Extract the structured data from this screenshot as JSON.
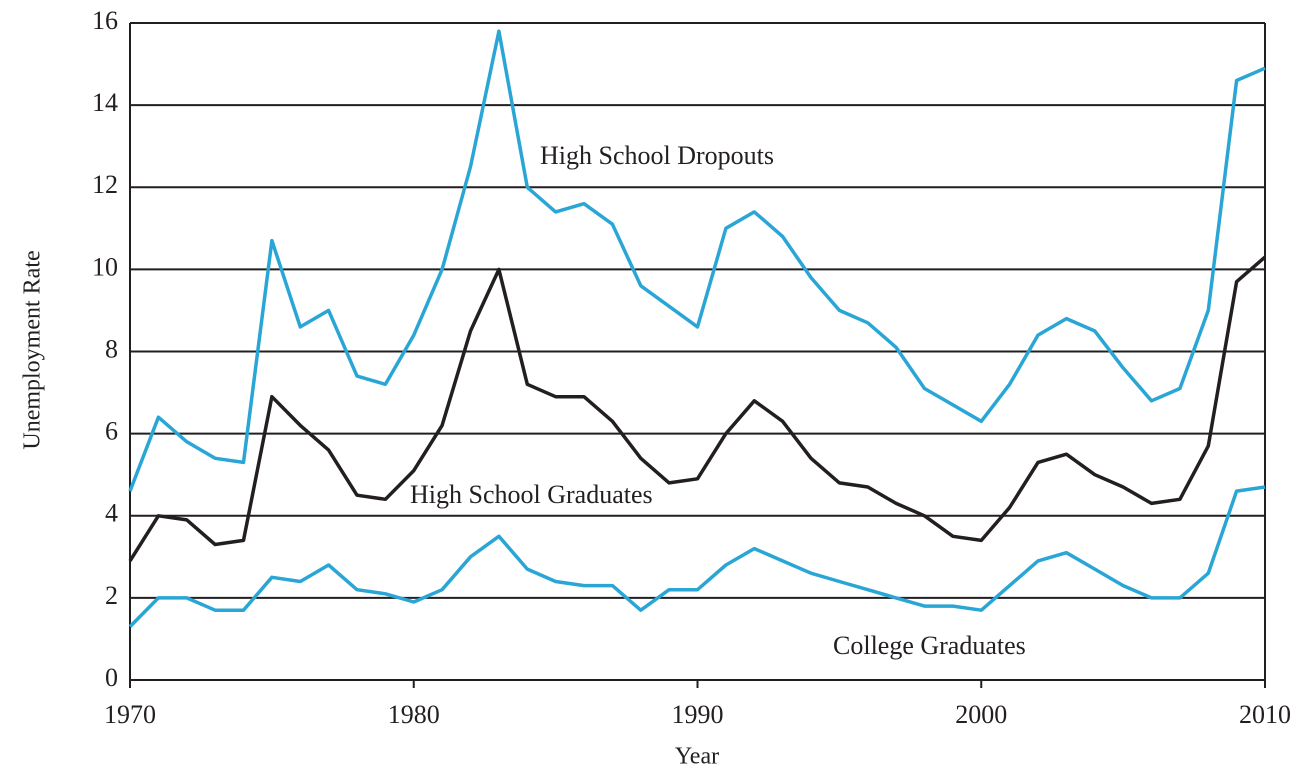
{
  "chart_data": {
    "type": "line",
    "x_label": "Year",
    "y_label": "Unemployment Rate",
    "x": [
      1970,
      1971,
      1972,
      1973,
      1974,
      1975,
      1976,
      1977,
      1978,
      1979,
      1980,
      1981,
      1982,
      1983,
      1984,
      1985,
      1986,
      1987,
      1988,
      1989,
      1990,
      1991,
      1992,
      1993,
      1994,
      1995,
      1996,
      1997,
      1998,
      1999,
      2000,
      2001,
      2002,
      2003,
      2004,
      2005,
      2006,
      2007,
      2008,
      2009,
      2010
    ],
    "series": [
      {
        "name": "High School Dropouts",
        "color": "#2aa6d6",
        "values": [
          4.6,
          6.4,
          5.8,
          5.4,
          5.3,
          10.7,
          8.6,
          9.0,
          7.4,
          7.2,
          8.4,
          10.0,
          12.5,
          15.8,
          12.0,
          11.4,
          11.6,
          11.1,
          9.6,
          9.1,
          8.6,
          11.0,
          11.4,
          10.8,
          9.8,
          9.0,
          8.7,
          8.1,
          7.1,
          6.7,
          6.3,
          7.2,
          8.4,
          8.8,
          8.5,
          7.6,
          6.8,
          7.1,
          9.0,
          14.6,
          14.9
        ]
      },
      {
        "name": "High School Graduates",
        "color": "#231f20",
        "values": [
          2.9,
          4.0,
          3.9,
          3.3,
          3.4,
          6.9,
          6.2,
          5.6,
          4.5,
          4.4,
          5.1,
          6.2,
          8.5,
          10.0,
          7.2,
          6.9,
          6.9,
          6.3,
          5.4,
          4.8,
          4.9,
          6.0,
          6.8,
          6.3,
          5.4,
          4.8,
          4.7,
          4.3,
          4.0,
          3.5,
          3.4,
          4.2,
          5.3,
          5.5,
          5.0,
          4.7,
          4.3,
          4.4,
          5.7,
          9.7,
          10.3
        ]
      },
      {
        "name": "College Graduates",
        "color": "#2aa6d6",
        "values": [
          1.3,
          2.0,
          2.0,
          1.7,
          1.7,
          2.5,
          2.4,
          2.8,
          2.2,
          2.1,
          1.9,
          2.2,
          3.0,
          3.5,
          2.7,
          2.4,
          2.3,
          2.3,
          1.7,
          2.2,
          2.2,
          2.8,
          3.2,
          2.9,
          2.6,
          2.4,
          2.2,
          2.0,
          1.8,
          1.8,
          1.7,
          2.3,
          2.9,
          3.1,
          2.7,
          2.3,
          2.0,
          2.0,
          2.6,
          4.6,
          4.7
        ]
      }
    ],
    "xlim": [
      1970,
      2010
    ],
    "xticks": [
      1970,
      1980,
      1990,
      2000,
      2010
    ],
    "ylim": [
      0,
      16
    ],
    "yticks": [
      0,
      2,
      4,
      6,
      8,
      10,
      12,
      14,
      16
    ],
    "grid": true
  }
}
